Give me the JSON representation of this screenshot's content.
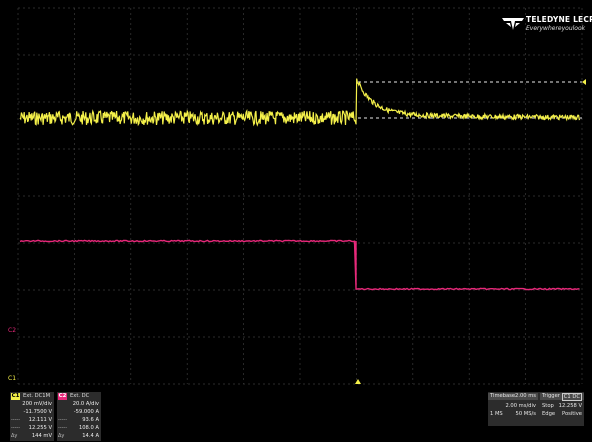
{
  "brand": {
    "name": "TELEDYNE LECROY",
    "tagline": "Everywhereyoulook"
  },
  "channel_markers": {
    "c1": "C1",
    "c2": "C2"
  },
  "channels": [
    {
      "tag": "C1",
      "coupling": "Ext. DC1M",
      "rows": [
        {
          "k": "",
          "v": "200 mV/div"
        },
        {
          "k": "",
          "v": "-11.7500 V"
        },
        {
          "k": "-----",
          "v": "12.111 V"
        },
        {
          "k": "-----",
          "v": "12.255 V"
        },
        {
          "k": "Δy",
          "v": "144 mV"
        }
      ]
    },
    {
      "tag": "C2",
      "coupling": "Ext. DC",
      "rows": [
        {
          "k": "",
          "v": "20.0 A/div"
        },
        {
          "k": "",
          "v": "-59.000 A"
        },
        {
          "k": "-----",
          "v": "93.6 A"
        },
        {
          "k": "-----",
          "v": "108.0 A"
        },
        {
          "k": "Δy",
          "v": "14.4 A"
        }
      ]
    }
  ],
  "timebase": {
    "label": "Timebase",
    "delay": "2.00 ms",
    "trigger_label": "Trigger",
    "trigger_src": "C1 DC",
    "time_div": "2.00 ms/div",
    "samples": "1 MS",
    "rate": "50 MS/s",
    "mode": "Stop",
    "type": "Edge",
    "level": "12.258 V",
    "slope": "Positive"
  },
  "colors": {
    "c1": "#f4f04a",
    "c2": "#e8287a",
    "grid": "#3a3a3a"
  }
}
